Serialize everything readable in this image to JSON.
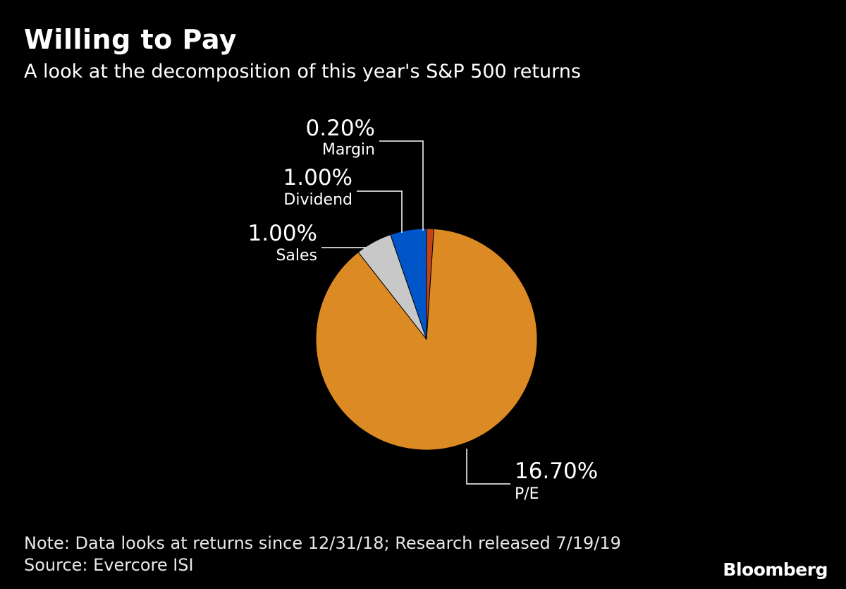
{
  "header": {
    "title": "Willing to Pay",
    "subtitle": "A look at the decomposition of this year's S&P 500 returns"
  },
  "chart_data": {
    "type": "pie",
    "slices": [
      {
        "label": "Margin",
        "value": 0.2,
        "value_label": "0.20%",
        "color": "#c2451a"
      },
      {
        "label": "P/E",
        "value": 16.7,
        "value_label": "16.70%",
        "color": "#dc8a23"
      },
      {
        "label": "Sales",
        "value": 1.0,
        "value_label": "1.00%",
        "color": "#c8c8c8"
      },
      {
        "label": "Dividend",
        "value": 1.0,
        "value_label": "1.00%",
        "color": "#0055c8"
      }
    ],
    "start": "12 o'clock",
    "direction": "clockwise"
  },
  "footer": {
    "note": "Note: Data looks at returns since 12/31/18; Research released 7/19/19",
    "source": "Source: Evercore ISI",
    "brand": "Bloomberg"
  }
}
